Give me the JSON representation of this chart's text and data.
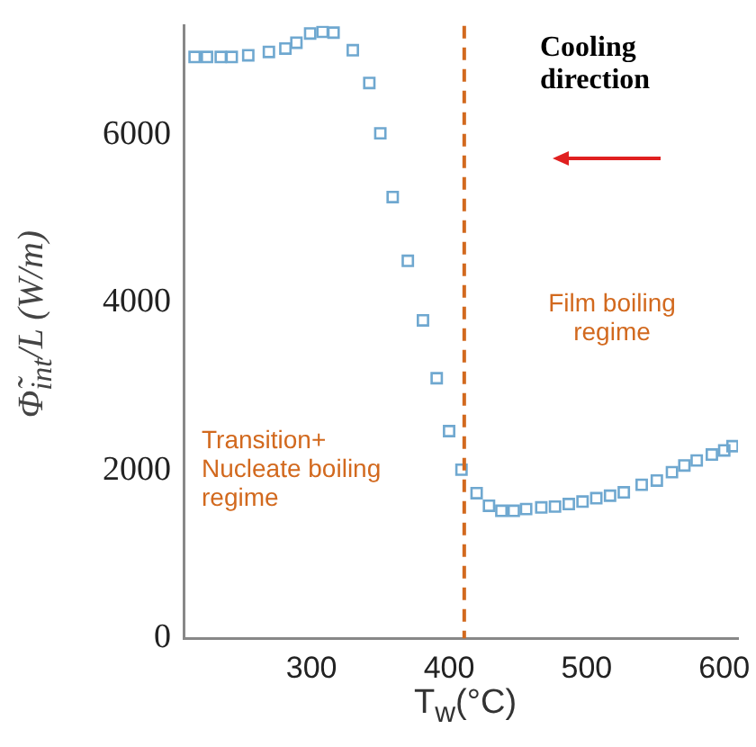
{
  "chart_data": {
    "type": "scatter",
    "xlabel": "T$_{w}$(°C)",
    "ylabel": "Φ̃$_{int}$/L (W/m)",
    "x": [
      215,
      224,
      234,
      242,
      254,
      269,
      281,
      289,
      299,
      308,
      316,
      330,
      342,
      350,
      359,
      370,
      381,
      391,
      400,
      409,
      420,
      429,
      438,
      447,
      456,
      467,
      477,
      487,
      497,
      507,
      517,
      527,
      540,
      551,
      562,
      571,
      580,
      591,
      600,
      606
    ],
    "series": [
      {
        "color": "#6fa8d0",
        "values": [
          6930,
          6930,
          6930,
          6930,
          6950,
          6990,
          7030,
          7100,
          7210,
          7230,
          7220,
          7010,
          6620,
          6020,
          5260,
          4500,
          3790,
          3100,
          2470,
          2010,
          1730,
          1580,
          1520,
          1520,
          1540,
          1560,
          1570,
          1600,
          1630,
          1670,
          1700,
          1740,
          1830,
          1880,
          1980,
          2060,
          2120,
          2190,
          2240,
          2290
        ]
      }
    ],
    "xlim": [
      207,
      610
    ],
    "ylim": [
      0,
      7300
    ],
    "xticks": [
      300,
      400,
      500,
      600
    ],
    "yticks": [
      0,
      2000,
      4000,
      6000
    ],
    "marker": "square",
    "grid": false,
    "legend": false,
    "ref_lines": [
      {
        "axis": "x",
        "value": 411,
        "color": "#d2691e",
        "line_style": "dashed"
      }
    ],
    "annotations": [
      "Cooling direction",
      "Film boiling regime",
      "Transition+ Nucleate boiling regime"
    ]
  }
}
